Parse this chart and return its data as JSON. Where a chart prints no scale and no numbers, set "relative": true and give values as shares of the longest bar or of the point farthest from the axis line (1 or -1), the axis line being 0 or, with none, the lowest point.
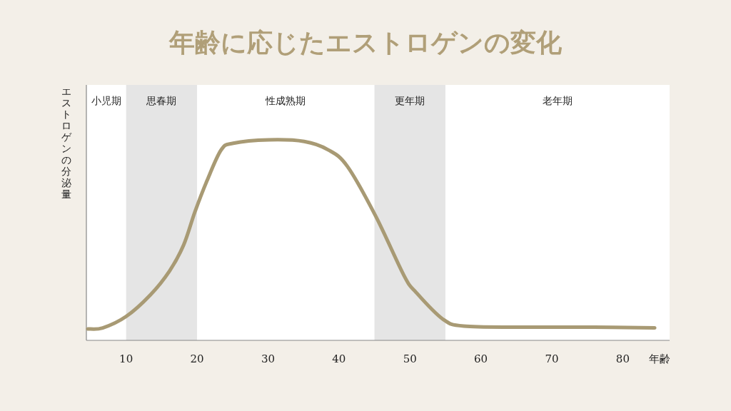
{
  "chart_data": {
    "type": "line",
    "title": "年齢に応じたエストロゲンの変化",
    "xlabel": "年齢",
    "ylabel": "エストロゲンの分泌量",
    "relative": true,
    "color": "#a89a74",
    "line_style": "solid",
    "marker": "none",
    "x": [
      4.6,
      6.7,
      10.0,
      13.4,
      16.1,
      18.1,
      19.7,
      21.4,
      23.4,
      25.1,
      30.1,
      35.1,
      38.5,
      41.2,
      45.2,
      49.2,
      50.9,
      54.6,
      57.6,
      66,
      76,
      84.5
    ],
    "values": [
      0.057,
      0.062,
      0.119,
      0.226,
      0.345,
      0.475,
      0.641,
      0.796,
      0.95,
      0.983,
      1.0,
      0.992,
      0.95,
      0.867,
      0.618,
      0.321,
      0.238,
      0.107,
      0.071,
      0.066,
      0.066,
      0.062
    ],
    "xlim": [
      4.4,
      86.6
    ],
    "xticks": [
      10,
      20,
      30,
      40,
      50,
      60,
      70,
      80
    ],
    "bands": [
      {
        "axis": "x",
        "from": 10,
        "to": 20,
        "label": "思春期",
        "color": "#e5e5e5"
      },
      {
        "axis": "x",
        "from": 45,
        "to": 55,
        "label": "更年期",
        "color": "#e5e5e5"
      }
    ],
    "annotations": [
      "小児期",
      "性成熟期",
      "老年期"
    ]
  }
}
